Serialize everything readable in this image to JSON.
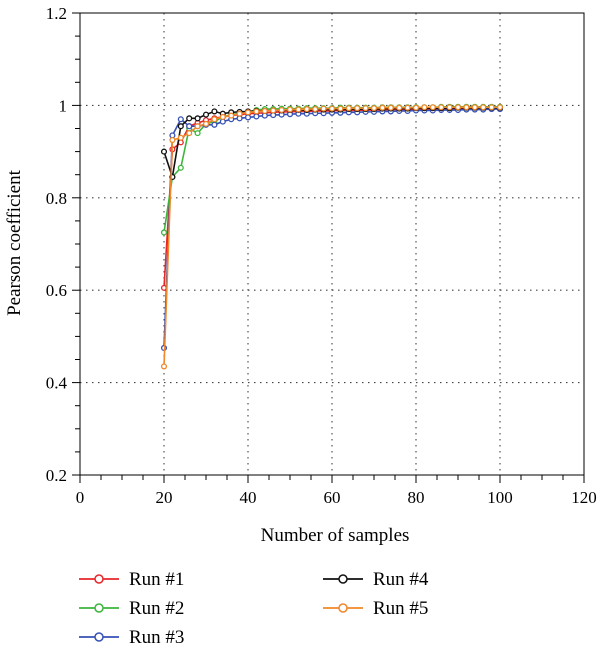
{
  "chart_data": {
    "type": "line",
    "title": "",
    "xlabel": "Number of samples",
    "ylabel": "Pearson coefficient",
    "xlim": [
      0,
      120
    ],
    "ylim": [
      0.2,
      1.2
    ],
    "xticks": [
      0,
      20,
      40,
      60,
      80,
      100,
      120
    ],
    "yticks": [
      0.2,
      0.4,
      0.6,
      0.8,
      1,
      1.2
    ],
    "xtick_labels": [
      "0",
      "20",
      "40",
      "60",
      "80",
      "100",
      "120"
    ],
    "ytick_labels": [
      "0.2",
      "0.4",
      "0.6",
      "0.8",
      "1",
      "1.2"
    ],
    "grid": "dotted, at major ticks",
    "legend_position": "below plot, two columns",
    "x": [
      20,
      22,
      24,
      26,
      28,
      30,
      32,
      34,
      36,
      38,
      40,
      42,
      44,
      46,
      48,
      50,
      52,
      54,
      56,
      58,
      60,
      62,
      64,
      66,
      68,
      70,
      72,
      74,
      76,
      78,
      80,
      82,
      84,
      86,
      88,
      90,
      92,
      94,
      96,
      98,
      100
    ],
    "series": [
      {
        "name": "Run #1",
        "color": "#e8262a",
        "values": [
          0.605,
          0.905,
          0.92,
          0.955,
          0.962,
          0.968,
          0.972,
          0.975,
          0.978,
          0.98,
          0.982,
          0.983,
          0.984,
          0.985,
          0.986,
          0.986,
          0.987,
          0.987,
          0.988,
          0.988,
          0.988,
          0.989,
          0.989,
          0.989,
          0.99,
          0.99,
          0.99,
          0.991,
          0.991,
          0.991,
          0.992,
          0.992,
          0.992,
          0.992,
          0.993,
          0.993,
          0.993,
          0.993,
          0.994,
          0.994,
          0.994
        ]
      },
      {
        "name": "Run #2",
        "color": "#3cb53c",
        "values": [
          0.725,
          0.845,
          0.865,
          0.95,
          0.94,
          0.96,
          0.965,
          0.975,
          0.98,
          0.983,
          0.986,
          0.99,
          0.992,
          0.992,
          0.993,
          0.993,
          0.993,
          0.994,
          0.994,
          0.994,
          0.994,
          0.995,
          0.995,
          0.995,
          0.995,
          0.995,
          0.996,
          0.996,
          0.996,
          0.996,
          0.996,
          0.996,
          0.996,
          0.997,
          0.997,
          0.997,
          0.997,
          0.997,
          0.997,
          0.997,
          0.997
        ]
      },
      {
        "name": "Run #3",
        "color": "#3651b5",
        "values": [
          0.475,
          0.935,
          0.97,
          0.955,
          0.955,
          0.958,
          0.958,
          0.965,
          0.97,
          0.972,
          0.974,
          0.976,
          0.978,
          0.979,
          0.98,
          0.981,
          0.982,
          0.982,
          0.983,
          0.983,
          0.984,
          0.984,
          0.985,
          0.985,
          0.986,
          0.986,
          0.987,
          0.987,
          0.988,
          0.988,
          0.989,
          0.989,
          0.989,
          0.99,
          0.99,
          0.99,
          0.991,
          0.991,
          0.991,
          0.992,
          0.992
        ]
      },
      {
        "name": "Run #4",
        "color": "#111111",
        "values": [
          0.9,
          0.845,
          0.955,
          0.972,
          0.972,
          0.98,
          0.987,
          0.982,
          0.985,
          0.986,
          0.987,
          0.988,
          0.988,
          0.989,
          0.989,
          0.99,
          0.99,
          0.99,
          0.991,
          0.991,
          0.991,
          0.991,
          0.992,
          0.992,
          0.992,
          0.992,
          0.993,
          0.993,
          0.993,
          0.993,
          0.994,
          0.994,
          0.994,
          0.994,
          0.994,
          0.995,
          0.995,
          0.995,
          0.995,
          0.995,
          0.995
        ]
      },
      {
        "name": "Run #5",
        "color": "#f0872a",
        "values": [
          0.435,
          0.925,
          0.93,
          0.94,
          0.955,
          0.96,
          0.97,
          0.975,
          0.978,
          0.982,
          0.985,
          0.987,
          0.988,
          0.989,
          0.99,
          0.991,
          0.991,
          0.992,
          0.992,
          0.993,
          0.993,
          0.993,
          0.994,
          0.994,
          0.994,
          0.994,
          0.995,
          0.995,
          0.995,
          0.995,
          0.995,
          0.996,
          0.996,
          0.996,
          0.996,
          0.996,
          0.996,
          0.996,
          0.996,
          0.996,
          0.996
        ]
      }
    ]
  }
}
